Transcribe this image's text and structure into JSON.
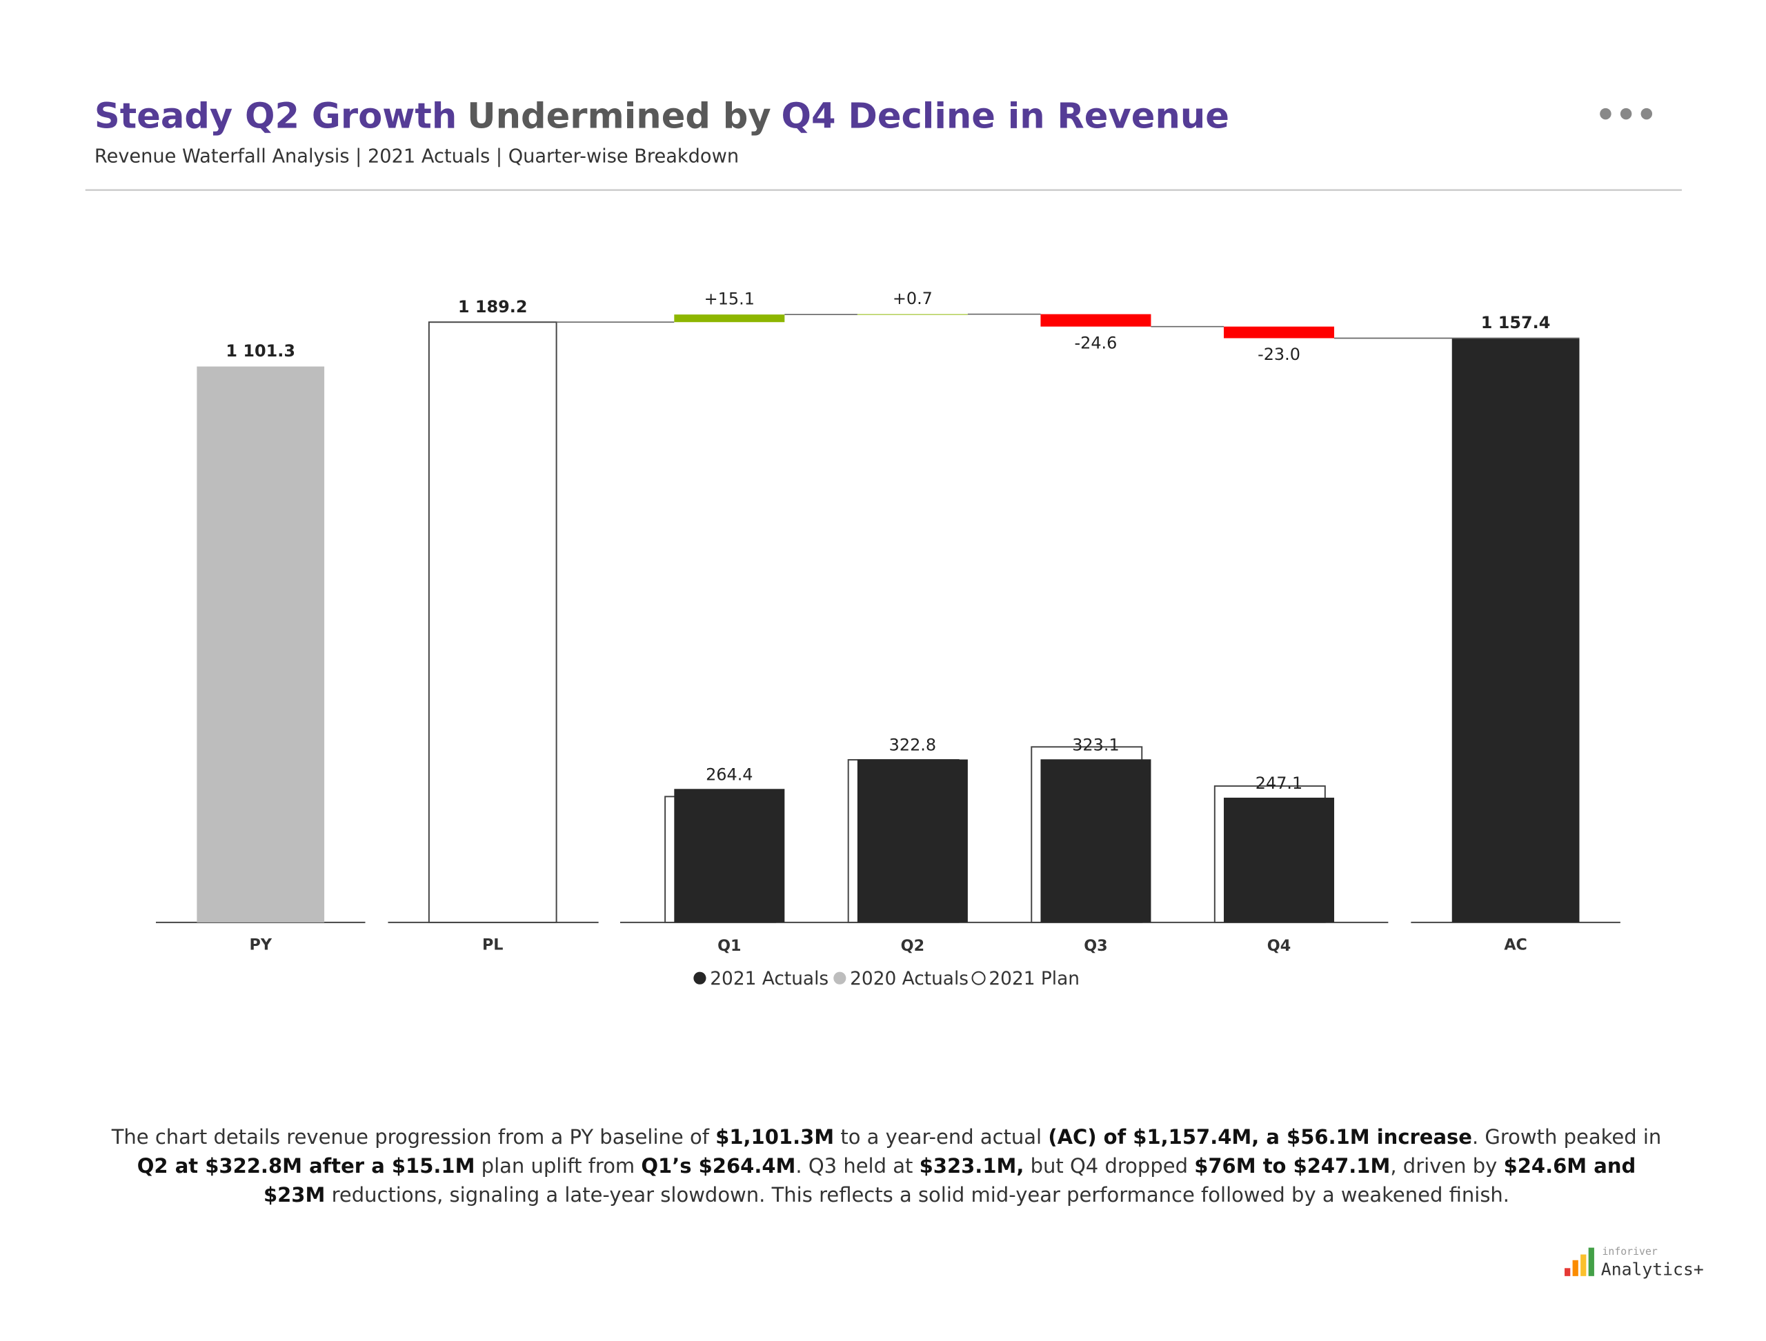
{
  "chart_data": {
    "type": "waterfall",
    "title": [
      {
        "text": "Steady Q2 Growth",
        "color": "#553c96"
      },
      {
        "text": "Undermined by",
        "color": "#595959"
      },
      {
        "text": "Q4 Decline in Revenue",
        "color": "#553c96"
      }
    ],
    "subtitle": "Revenue Waterfall Analysis | 2021 Actuals | Quarter-wise Breakdown",
    "ylim": [
      0,
      1300
    ],
    "totals": {
      "categories": [
        "PY",
        "PL",
        "AC"
      ],
      "values": [
        1101.3,
        1189.2,
        1157.4
      ],
      "value_labels": [
        "1 101.3",
        "1 189.2",
        "1 157.4"
      ],
      "colors": [
        "#bdbdbd",
        "#ffffff",
        "#262626"
      ]
    },
    "quarters": {
      "categories": [
        "Q1",
        "Q2",
        "Q3",
        "Q4"
      ],
      "actuals": [
        264.4,
        322.8,
        323.1,
        247.1
      ],
      "plan": [
        249.3,
        322.1,
        347.7,
        270.1
      ],
      "variance": [
        15.1,
        0.7,
        -24.6,
        -23.0
      ],
      "variance_labels": [
        "+15.1",
        "+0.7",
        "-24.6",
        "-23.0"
      ],
      "actual_color": "#262626",
      "positive_color": "#8db600",
      "negative_color": "#ff0000"
    },
    "legend": [
      {
        "name": "2021 Actuals",
        "color": "#262626"
      },
      {
        "name": "2020 Actuals",
        "color": "#bdbdbd"
      },
      {
        "name": "2021 Plan",
        "color": "#ffffff"
      }
    ]
  },
  "description": {
    "segments": [
      {
        "text": "The chart details revenue progression from a PY baseline of ",
        "bold": false
      },
      {
        "text": "$1,101.3M",
        "bold": true
      },
      {
        "text": " to a year-end actual ",
        "bold": false
      },
      {
        "text": "(AC) of $1,157.4M, a $56.1M increase",
        "bold": true
      },
      {
        "text": ". Growth peaked in ",
        "bold": false
      },
      {
        "text": "Q2 at $322.8M after a $15.1M",
        "bold": true
      },
      {
        "text": " plan uplift from ",
        "bold": false
      },
      {
        "text": "Q1’s $264.4M",
        "bold": true
      },
      {
        "text": ". Q3 held at ",
        "bold": false
      },
      {
        "text": "$323.1M,",
        "bold": true
      },
      {
        "text": " but Q4 dropped ",
        "bold": false
      },
      {
        "text": "$76M to $247.1M",
        "bold": true
      },
      {
        "text": ", driven by ",
        "bold": false
      },
      {
        "text": "$24.6M and $23M",
        "bold": true
      },
      {
        "text": " reductions, signaling a late-year slowdown. This reflects a solid mid-year performance followed by a weakened finish.",
        "bold": false
      }
    ]
  },
  "logo": {
    "brand": "inforiver",
    "product": "Analytics+"
  }
}
